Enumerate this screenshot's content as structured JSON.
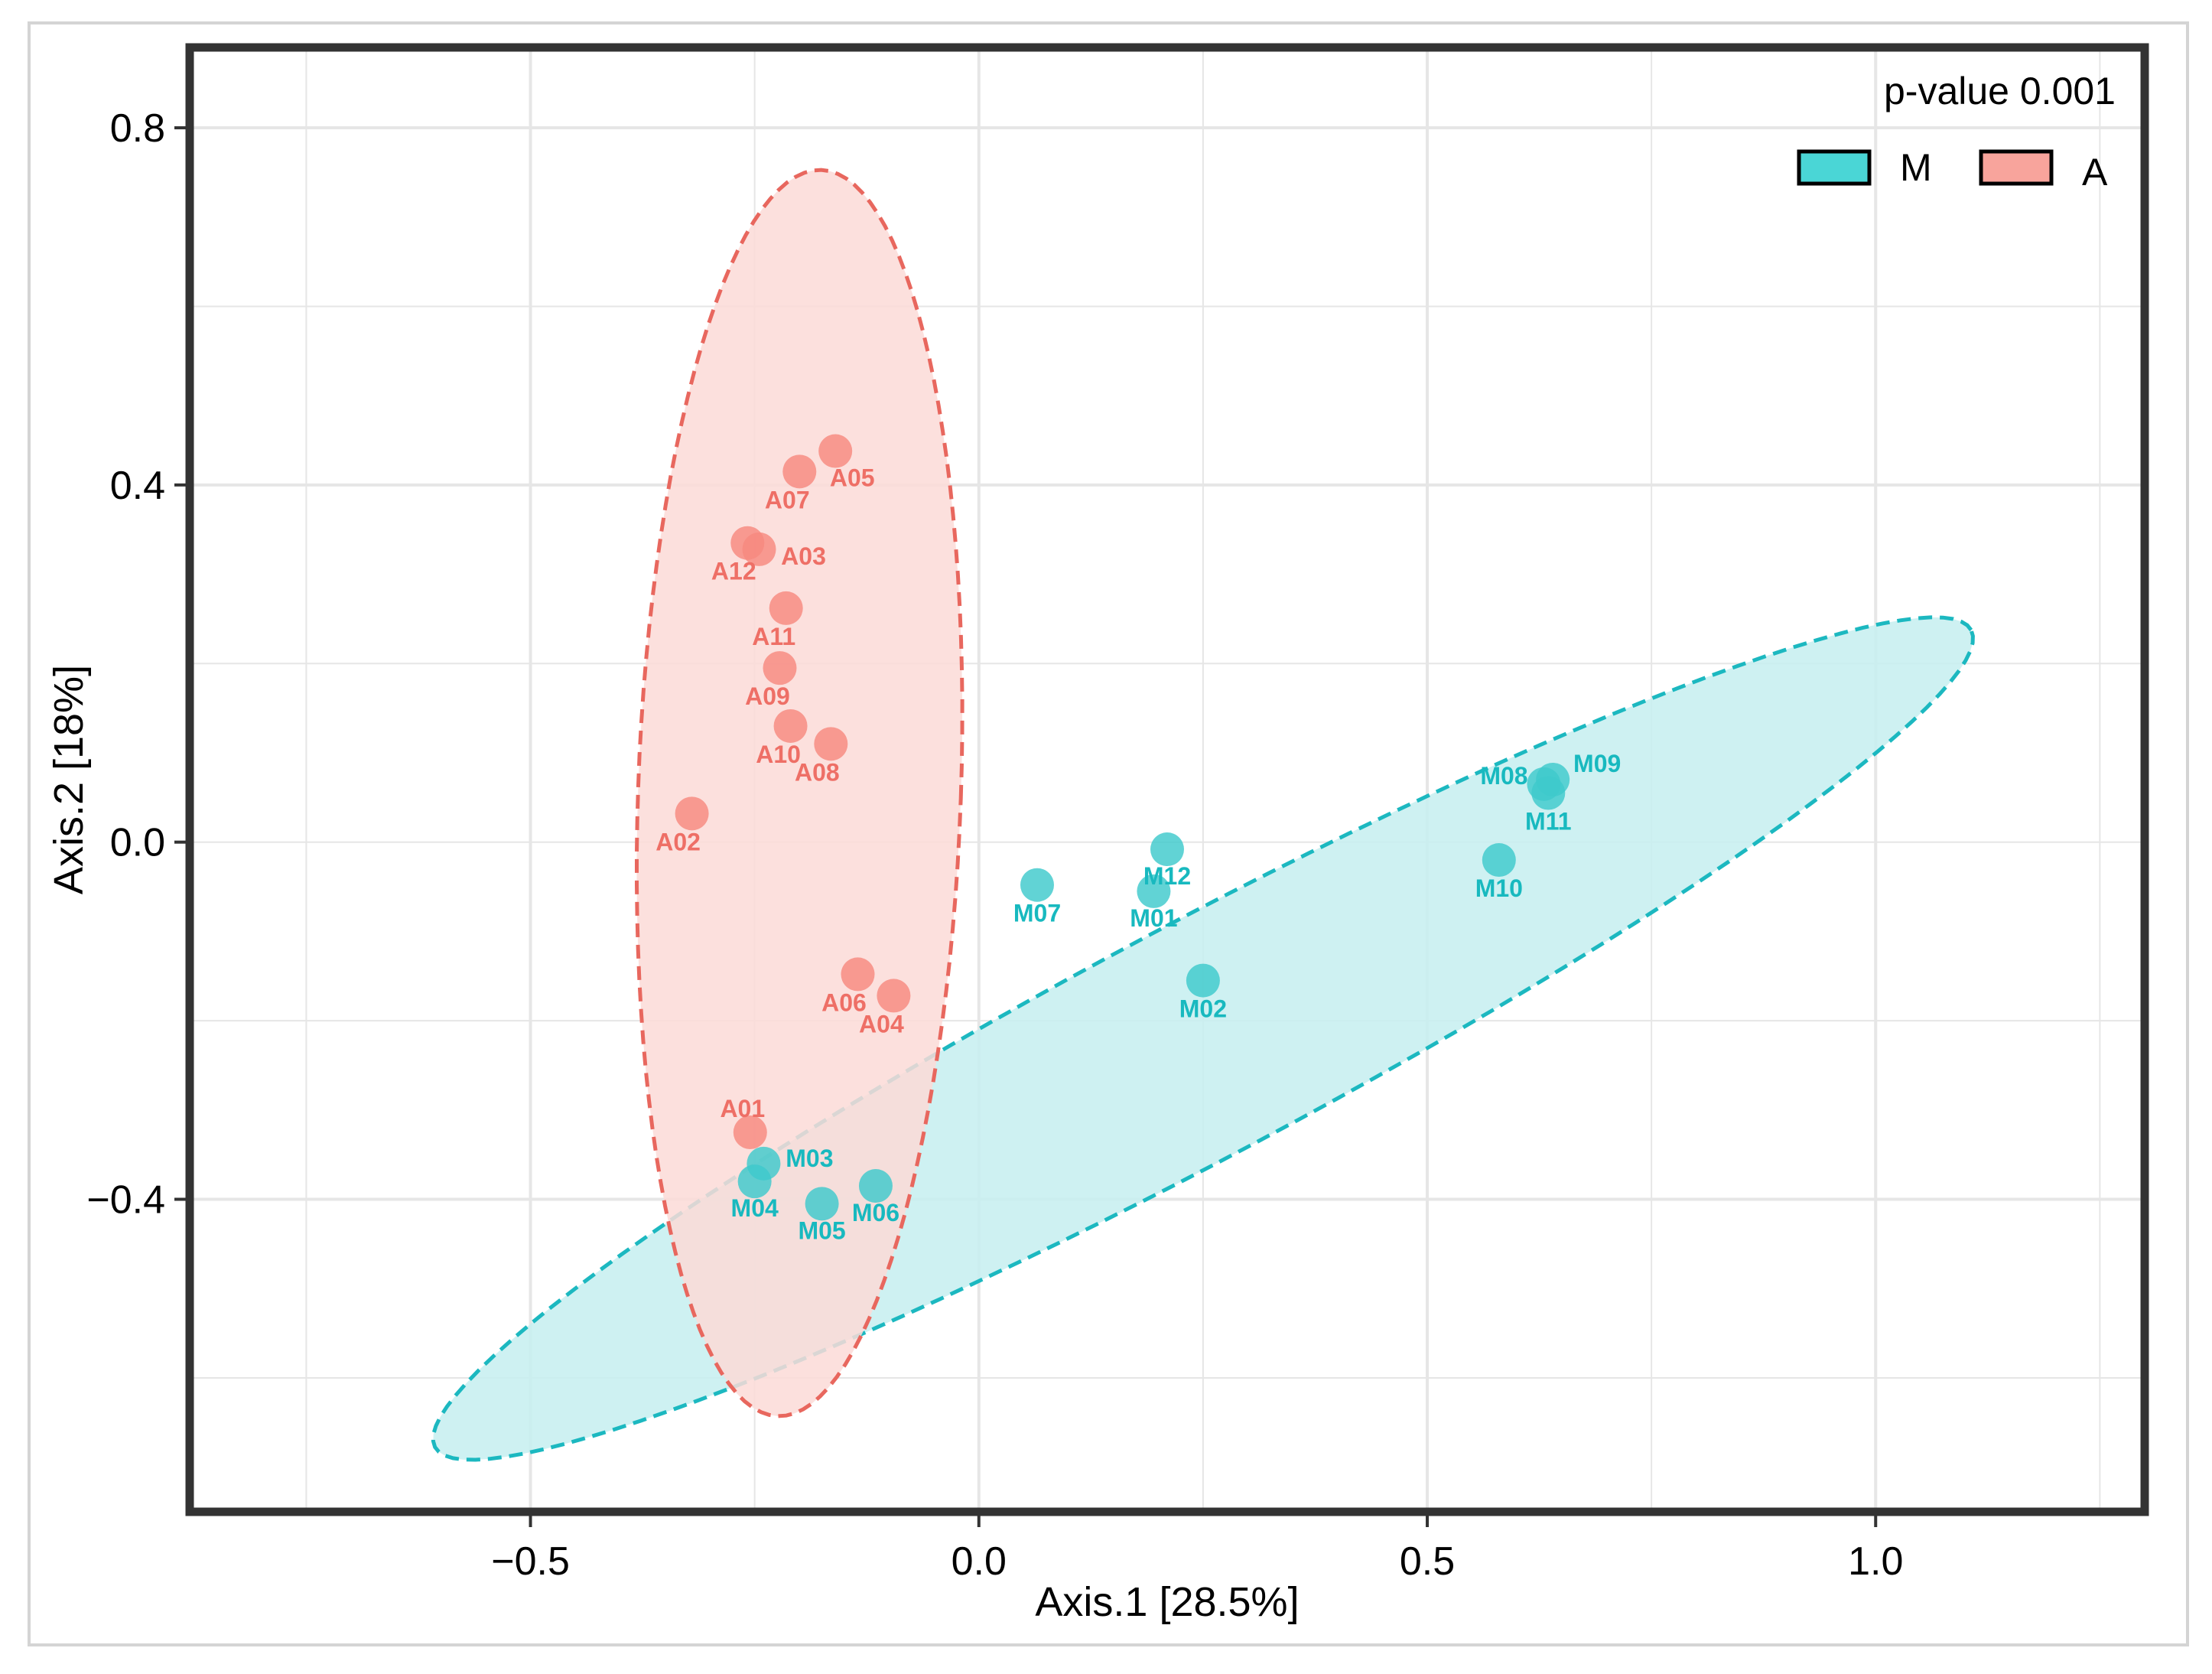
{
  "chart_data": {
    "type": "scatter",
    "title": "",
    "xlabel": "Axis.1   [28.5%]",
    "ylabel": "Axis.2   [18%]",
    "xlim": [
      -0.88,
      1.3
    ],
    "ylim": [
      -0.75,
      0.89
    ],
    "x_ticks": [
      -0.5,
      0.0,
      0.5,
      1.0
    ],
    "x_tick_labels": [
      "−0.5",
      "0.0",
      "0.5",
      "1.0"
    ],
    "y_ticks": [
      -0.4,
      0.0,
      0.4,
      0.8
    ],
    "y_tick_labels": [
      "−0.4",
      "0.0",
      "0.4",
      "0.8"
    ],
    "grid": true,
    "annotation": "p-value 0.001",
    "legend": {
      "position": "top-right",
      "entries": [
        {
          "name": "M",
          "color": "#4ad6d6"
        },
        {
          "name": "A",
          "color": "#f8a49c"
        }
      ]
    },
    "series": [
      {
        "name": "M",
        "color": "#3ec9cc",
        "label_color": "#18b9bf",
        "ellipse": {
          "cx": 0.25,
          "cy": -0.22,
          "rx": 0.97,
          "ry": 0.13,
          "angle_deg": 28,
          "fill": "#c6eef0",
          "stroke": "#1cb8c0"
        },
        "points": [
          {
            "label": "M01",
            "x": 0.195,
            "y": -0.055
          },
          {
            "label": "M02",
            "x": 0.25,
            "y": -0.155
          },
          {
            "label": "M03",
            "x": -0.24,
            "y": -0.36
          },
          {
            "label": "M04",
            "x": -0.25,
            "y": -0.38
          },
          {
            "label": "M05",
            "x": -0.175,
            "y": -0.405
          },
          {
            "label": "M06",
            "x": -0.115,
            "y": -0.385
          },
          {
            "label": "M07",
            "x": 0.065,
            "y": -0.048
          },
          {
            "label": "M08",
            "x": 0.63,
            "y": 0.065
          },
          {
            "label": "M09",
            "x": 0.64,
            "y": 0.07
          },
          {
            "label": "M10",
            "x": 0.58,
            "y": -0.02
          },
          {
            "label": "M11",
            "x": 0.635,
            "y": 0.055
          },
          {
            "label": "M12",
            "x": 0.21,
            "y": -0.008
          }
        ]
      },
      {
        "name": "A",
        "color": "#f7897f",
        "label_color": "#ee6f66",
        "ellipse": {
          "cx": -0.2,
          "cy": 0.055,
          "rx": 0.18,
          "ry": 0.695,
          "angle_deg": -2,
          "fill": "#fcdad7",
          "stroke": "#e8675e"
        },
        "points": [
          {
            "label": "A01",
            "x": -0.255,
            "y": -0.325
          },
          {
            "label": "A02",
            "x": -0.32,
            "y": 0.032
          },
          {
            "label": "A03",
            "x": -0.245,
            "y": 0.328
          },
          {
            "label": "A04",
            "x": -0.095,
            "y": -0.172
          },
          {
            "label": "A05",
            "x": -0.16,
            "y": 0.438
          },
          {
            "label": "A06",
            "x": -0.135,
            "y": -0.148
          },
          {
            "label": "A07",
            "x": -0.2,
            "y": 0.415
          },
          {
            "label": "A08",
            "x": -0.165,
            "y": 0.11
          },
          {
            "label": "A09",
            "x": -0.222,
            "y": 0.195
          },
          {
            "label": "A10",
            "x": -0.21,
            "y": 0.13
          },
          {
            "label": "A11",
            "x": -0.215,
            "y": 0.262
          },
          {
            "label": "A12",
            "x": -0.258,
            "y": 0.335
          }
        ]
      }
    ]
  }
}
